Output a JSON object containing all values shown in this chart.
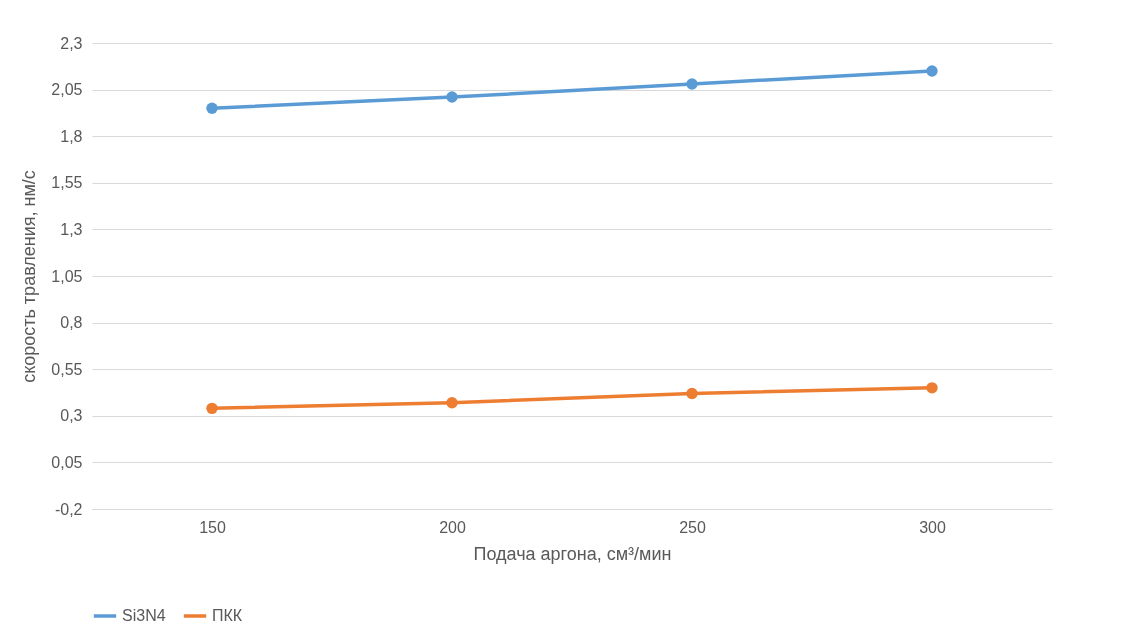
{
  "chart_data": {
    "type": "line",
    "xlabel": "Подача аргона, см³/мин",
    "ylabel": "скорость травления, нм/с",
    "categories": [
      "150",
      "200",
      "250",
      "300"
    ],
    "series": [
      {
        "name": "Si3N4",
        "color": "#5b9bd5",
        "values": [
          1.95,
          2.01,
          2.08,
          2.15
        ]
      },
      {
        "name": "ПКК",
        "color": "#ed7d31",
        "values": [
          0.34,
          0.37,
          0.42,
          0.45
        ]
      }
    ],
    "ylim": [
      -0.2,
      2.3
    ],
    "yticks": [
      {
        "value": -0.2,
        "label": "-0,2"
      },
      {
        "value": 0.05,
        "label": "0,05"
      },
      {
        "value": 0.3,
        "label": "0,3"
      },
      {
        "value": 0.55,
        "label": "0,55"
      },
      {
        "value": 0.8,
        "label": "0,8"
      },
      {
        "value": 1.05,
        "label": "1,05"
      },
      {
        "value": 1.3,
        "label": "1,3"
      },
      {
        "value": 1.55,
        "label": "1,55"
      },
      {
        "value": 1.8,
        "label": "1,8"
      },
      {
        "value": 2.05,
        "label": "2,05"
      },
      {
        "value": 2.3,
        "label": "2,3"
      }
    ],
    "grid": "y",
    "legend": "bottom",
    "marker": "circle",
    "line_style": "solid"
  }
}
